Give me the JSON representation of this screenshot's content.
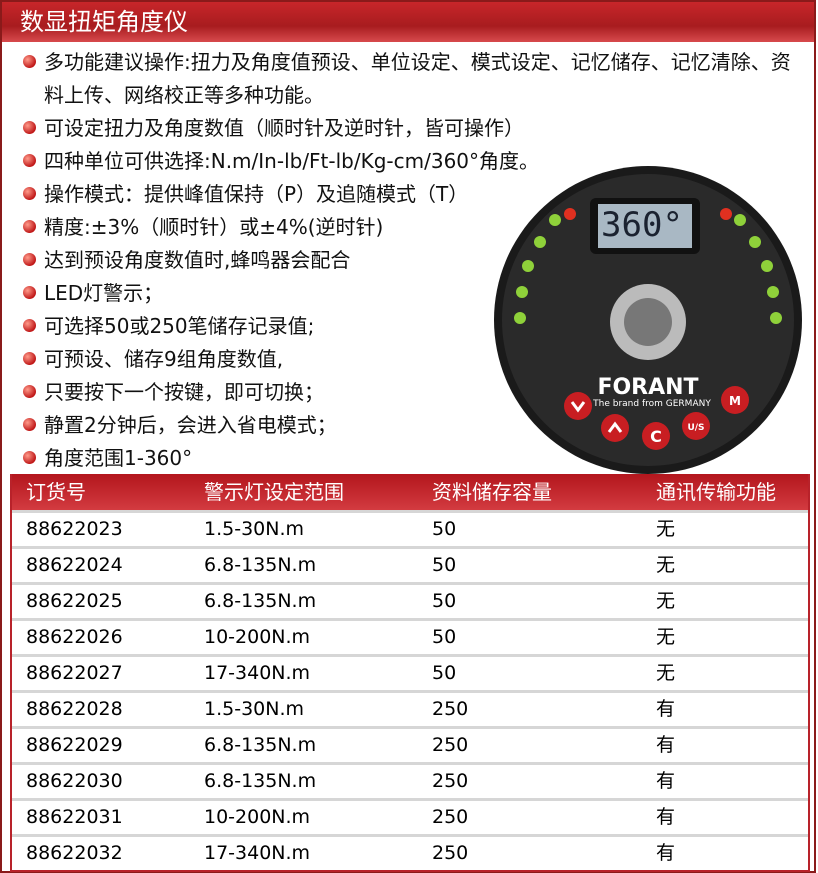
{
  "header": {
    "title": "数显扭矩角度仪"
  },
  "features": [
    "多功能建议操作:扭力及角度值预设、单位设定、模式设定、记忆储存、记忆清除、资料上传、网络校正等多种功能。",
    "可设定扭力及角度数值（顺时针及逆时针，皆可操作）",
    "四种单位可供选择:N.m/In-lb/Ft-lb/Kg-cm/360°角度。",
    "操作模式：提供峰值保持（P）及追随模式（T）",
    "精度:±3%（顺时针）或±4%(逆时针)",
    "达到预设角度数值时,蜂鸣器会配合",
    "LED灯警示；",
    "可选择50或250笔储存记录值;",
    "可预设、储存9组角度数值,",
    "只要按下一个按键，即可切换；",
    "静置2分钟后，会进入省电模式；",
    "角度范围1-360°"
  ],
  "device": {
    "display": "360°",
    "brand": "FORANT",
    "tagline": "The brand from GERMANY",
    "buttons": [
      "C",
      "U/S",
      "M"
    ]
  },
  "table": {
    "headers": [
      "订货号",
      "警示灯设定范围",
      "资料储存容量",
      "通讯传输功能"
    ],
    "rows": [
      [
        "88622023",
        "1.5-30N.m",
        "50",
        "无"
      ],
      [
        "88622024",
        "6.8-135N.m",
        "50",
        "无"
      ],
      [
        "88622025",
        "6.8-135N.m",
        "50",
        "无"
      ],
      [
        "88622026",
        "10-200N.m",
        "50",
        "无"
      ],
      [
        "88622027",
        "17-340N.m",
        "50",
        "无"
      ],
      [
        "88622028",
        "1.5-30N.m",
        "250",
        "有"
      ],
      [
        "88622029",
        "6.8-135N.m",
        "250",
        "有"
      ],
      [
        "88622030",
        "6.8-135N.m",
        "250",
        "有"
      ],
      [
        "88622031",
        "10-200N.m",
        "250",
        "有"
      ],
      [
        "88622032",
        "17-340N.m",
        "250",
        "有"
      ]
    ]
  }
}
